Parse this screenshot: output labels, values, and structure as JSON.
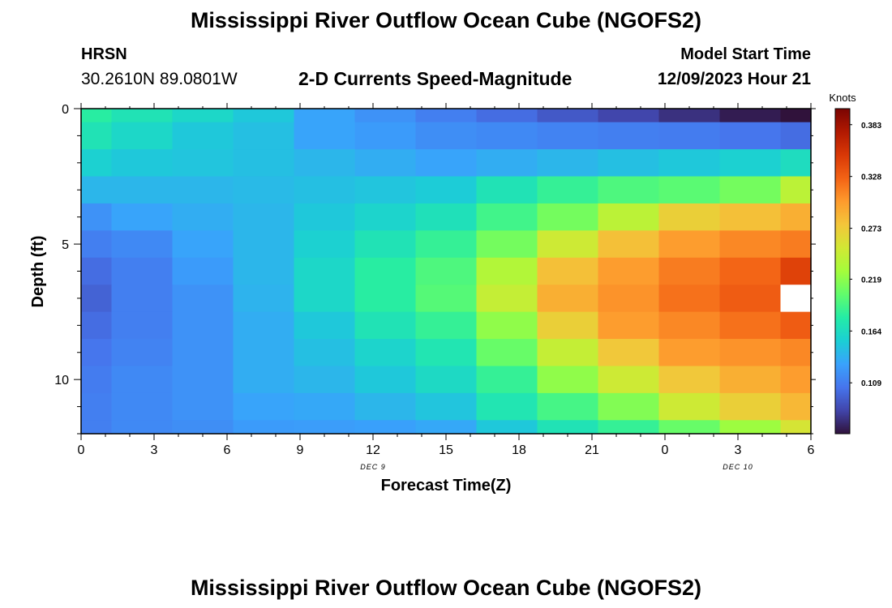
{
  "header": {
    "title": "Mississippi River Outflow Ocean Cube (NGOFS2)",
    "station": "HRSN",
    "coordinates": "30.2610N  89.0801W",
    "subtitle": "2-D Currents Speed-Magnitude",
    "model_start_label": "Model Start Time",
    "model_start_value": "12/09/2023 Hour 21"
  },
  "footer": {
    "title": "Mississippi River Outflow Ocean Cube (NGOFS2)"
  },
  "chart_data": {
    "type": "heatmap",
    "title": "2-D Currents Speed-Magnitude",
    "xlabel": "Forecast Time(Z)",
    "ylabel": "Depth (ft)",
    "x_range_hours": [
      0,
      30
    ],
    "y_range_ft": [
      0,
      12
    ],
    "x_ticks": [
      {
        "hour": 0,
        "label": "0"
      },
      {
        "hour": 3,
        "label": "3"
      },
      {
        "hour": 6,
        "label": "6"
      },
      {
        "hour": 9,
        "label": "9"
      },
      {
        "hour": 12,
        "label": "12"
      },
      {
        "hour": 15,
        "label": "15"
      },
      {
        "hour": 18,
        "label": "18"
      },
      {
        "hour": 21,
        "label": "21"
      },
      {
        "hour": 24,
        "label": "0"
      },
      {
        "hour": 27,
        "label": "3"
      },
      {
        "hour": 30,
        "label": "6"
      }
    ],
    "y_ticks": [
      {
        "depth": 0,
        "label": "0"
      },
      {
        "depth": 5,
        "label": "5"
      },
      {
        "depth": 10,
        "label": "10"
      }
    ],
    "date_labels": [
      {
        "hour": 12,
        "label": "DEC 9"
      },
      {
        "hour": 27,
        "label": "DEC 10"
      }
    ],
    "columns_hours": [
      0,
      1.25,
      3.75,
      6.25,
      8.75,
      11.25,
      13.75,
      16.25,
      18.75,
      21.25,
      23.75,
      26.25,
      28.75,
      30
    ],
    "rows_depth_ft": [
      0,
      0.5,
      1.5,
      2.5,
      3.5,
      4.5,
      5.5,
      6.5,
      7.5,
      8.5,
      9.5,
      10.5,
      11.5,
      12
    ],
    "colorbar": {
      "label": "Knots",
      "range": [
        0.055,
        0.4
      ],
      "ticks": [
        "0.383",
        "0.328",
        "0.273",
        "0.219",
        "0.164",
        "0.109"
      ],
      "colors": [
        "#30123b",
        "#4145ab",
        "#4675ed",
        "#39a2fc",
        "#1bcfd4",
        "#24eca6",
        "#61fc6c",
        "#a4fc3b",
        "#d1e834",
        "#f3c63a",
        "#fe9b2d",
        "#f36315",
        "#d93806",
        "#b11901",
        "#7a0402"
      ]
    },
    "missing_value_color": "#ffffff",
    "unit": "knots",
    "values": [
      [
        0.18,
        0.17,
        0.16,
        0.15,
        0.13,
        0.12,
        0.11,
        0.1,
        0.09,
        0.08,
        0.07,
        0.06,
        0.04
      ],
      [
        0.17,
        0.16,
        0.15,
        0.145,
        0.13,
        0.125,
        0.118,
        0.115,
        0.112,
        0.11,
        0.108,
        0.105,
        0.1
      ],
      [
        0.155,
        0.15,
        0.148,
        0.145,
        0.14,
        0.135,
        0.13,
        0.135,
        0.14,
        0.145,
        0.15,
        0.155,
        0.165
      ],
      [
        0.14,
        0.14,
        0.14,
        0.142,
        0.145,
        0.148,
        0.152,
        0.17,
        0.185,
        0.195,
        0.2,
        0.21,
        0.24
      ],
      [
        0.12,
        0.13,
        0.135,
        0.14,
        0.15,
        0.158,
        0.168,
        0.19,
        0.21,
        0.24,
        0.27,
        0.28,
        0.29
      ],
      [
        0.11,
        0.115,
        0.13,
        0.14,
        0.155,
        0.17,
        0.185,
        0.21,
        0.25,
        0.28,
        0.3,
        0.31,
        0.315
      ],
      [
        0.1,
        0.11,
        0.125,
        0.14,
        0.16,
        0.18,
        0.195,
        0.235,
        0.28,
        0.3,
        0.315,
        0.325,
        0.345
      ],
      [
        0.095,
        0.11,
        0.12,
        0.138,
        0.16,
        0.18,
        0.198,
        0.245,
        0.29,
        0.305,
        0.32,
        0.33,
        null
      ],
      [
        0.1,
        0.11,
        0.12,
        0.135,
        0.15,
        0.17,
        0.185,
        0.22,
        0.27,
        0.3,
        0.31,
        0.32,
        0.33
      ],
      [
        0.105,
        0.112,
        0.12,
        0.135,
        0.145,
        0.158,
        0.172,
        0.205,
        0.245,
        0.275,
        0.3,
        0.305,
        0.31
      ],
      [
        0.108,
        0.115,
        0.12,
        0.135,
        0.14,
        0.15,
        0.162,
        0.185,
        0.22,
        0.25,
        0.275,
        0.29,
        0.3
      ],
      [
        0.11,
        0.115,
        0.12,
        0.13,
        0.132,
        0.14,
        0.148,
        0.172,
        0.192,
        0.215,
        0.25,
        0.27,
        0.285
      ],
      [
        0.11,
        0.115,
        0.118,
        0.125,
        0.126,
        0.128,
        0.132,
        0.15,
        0.17,
        0.185,
        0.205,
        0.225,
        0.255
      ]
    ]
  }
}
